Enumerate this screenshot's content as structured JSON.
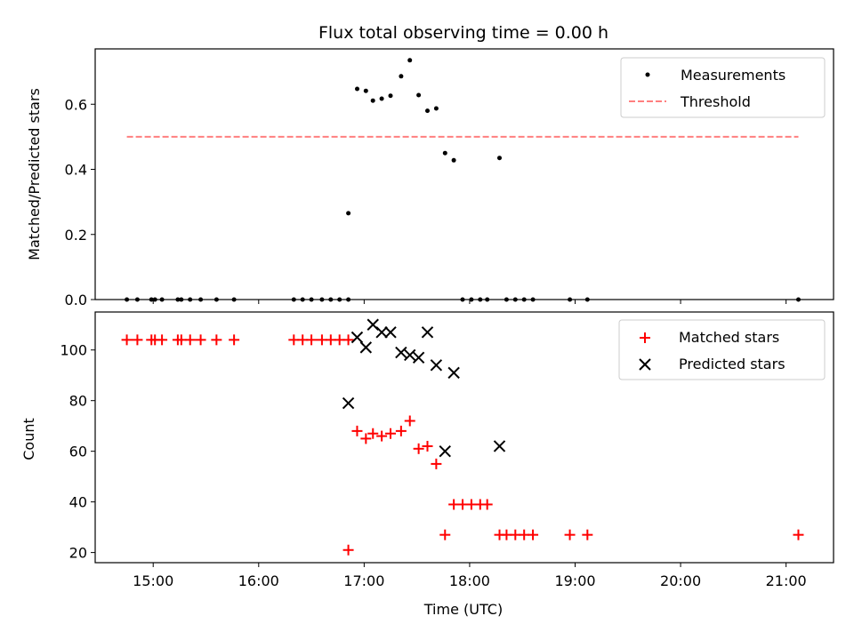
{
  "chart_data": [
    {
      "type": "scatter",
      "title": "Flux total observing time = 0.00 h",
      "ylabel": "Matched/Predicted stars",
      "xlabel": "",
      "xlim": [
        "14:27",
        "21:27"
      ],
      "ylim": [
        0,
        0.77
      ],
      "yticks": [
        0.0,
        0.2,
        0.4,
        0.6
      ],
      "ytick_labels": [
        "0.0",
        "0.2",
        "0.4",
        "0.6"
      ],
      "legend_position": "top-right",
      "grid": false,
      "series": [
        {
          "name": "Measurements",
          "kind": "points",
          "color": "#000000",
          "x": [
            "14:45",
            "14:51",
            "14:59",
            "15:01",
            "15:05",
            "15:14",
            "15:16",
            "15:21",
            "15:27",
            "15:36",
            "15:46",
            "16:20",
            "16:25",
            "16:30",
            "16:36",
            "16:41",
            "16:46",
            "16:51",
            "16:51",
            "16:56",
            "17:01",
            "17:05",
            "17:10",
            "17:15",
            "17:21",
            "17:26",
            "17:31",
            "17:36",
            "17:41",
            "17:46",
            "17:51",
            "17:56",
            "18:01",
            "18:06",
            "18:10",
            "18:17",
            "18:21",
            "18:26",
            "18:31",
            "18:36",
            "18:57",
            "19:07",
            "21:07"
          ],
          "y": [
            0,
            0,
            0,
            0,
            0,
            0,
            0,
            0,
            0,
            0,
            0,
            0,
            0,
            0,
            0,
            0,
            0,
            0,
            0.265,
            0.647,
            0.641,
            0.611,
            0.617,
            0.626,
            0.686,
            0.735,
            0.628,
            0.58,
            0.587,
            0.45,
            0.428,
            0,
            0,
            0,
            0,
            0.435,
            0,
            0,
            0,
            0,
            0,
            0,
            0
          ]
        },
        {
          "name": "Threshold",
          "kind": "dashed-line",
          "color": "#ff7f7f",
          "x": [
            "14:45",
            "21:07"
          ],
          "y": [
            0.5,
            0.5
          ]
        }
      ]
    },
    {
      "type": "scatter",
      "title": "",
      "ylabel": "Count",
      "xlabel": "Time (UTC)",
      "xlim": [
        "14:27",
        "21:27"
      ],
      "ylim": [
        16,
        115
      ],
      "yticks": [
        20,
        40,
        60,
        80,
        100
      ],
      "xticks": [
        "15:00",
        "16:00",
        "17:00",
        "18:00",
        "19:00",
        "20:00",
        "21:00"
      ],
      "legend_position": "top-right",
      "grid": false,
      "series": [
        {
          "name": "Matched stars",
          "marker": "plus",
          "color": "#ff0000",
          "x": [
            "14:45",
            "14:51",
            "14:59",
            "15:01",
            "15:05",
            "15:14",
            "15:16",
            "15:21",
            "15:27",
            "15:36",
            "15:46",
            "16:20",
            "16:25",
            "16:30",
            "16:36",
            "16:41",
            "16:46",
            "16:51",
            "16:51",
            "16:56",
            "17:01",
            "17:05",
            "17:10",
            "17:15",
            "17:21",
            "17:26",
            "17:31",
            "17:36",
            "17:41",
            "17:46",
            "17:51",
            "17:56",
            "18:01",
            "18:06",
            "18:10",
            "18:17",
            "18:21",
            "18:26",
            "18:31",
            "18:36",
            "18:57",
            "19:07",
            "21:07"
          ],
          "y": [
            104,
            104,
            104,
            104,
            104,
            104,
            104,
            104,
            104,
            104,
            104,
            104,
            104,
            104,
            104,
            104,
            104,
            104,
            21,
            68,
            65,
            67,
            66,
            67,
            68,
            72,
            61,
            62,
            55,
            27,
            39,
            39,
            39,
            39,
            39,
            27,
            27,
            27,
            27,
            27,
            27,
            27,
            27
          ]
        },
        {
          "name": "Predicted stars",
          "marker": "x",
          "color": "#000000",
          "x": [
            "16:51",
            "16:56",
            "17:01",
            "17:05",
            "17:10",
            "17:15",
            "17:21",
            "17:26",
            "17:31",
            "17:36",
            "17:41",
            "17:46",
            "17:51",
            "18:17"
          ],
          "y": [
            79,
            105,
            101,
            110,
            107,
            107,
            99,
            98,
            97,
            107,
            94,
            60,
            91,
            62
          ]
        }
      ]
    }
  ]
}
